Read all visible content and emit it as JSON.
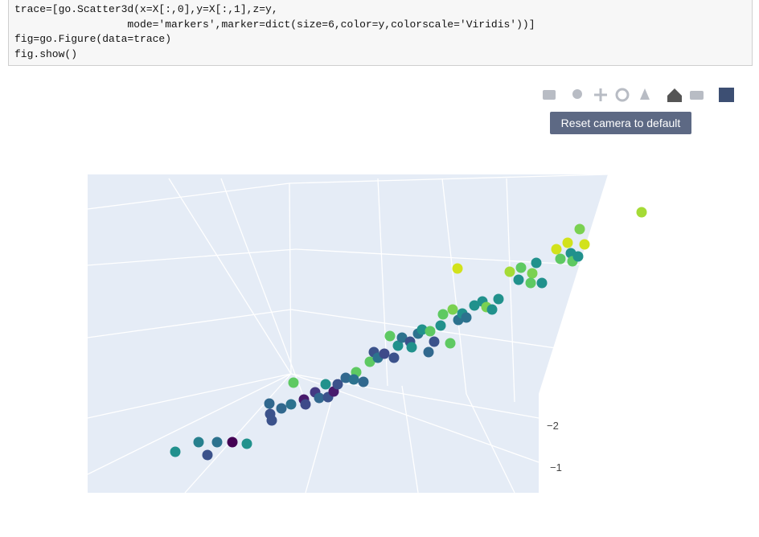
{
  "code": {
    "lines": [
      "trace=[go.Scatter3d(x=X[:,0],y=X[:,1],z=y,",
      "                  mode='markers',marker=dict(size=6,color=y,colorscale='Viridis'))]",
      "fig=go.Figure(data=trace)",
      "fig.show()"
    ]
  },
  "toolbar": {
    "tooltip": "Reset camera to default"
  },
  "scene": {
    "tick_labels": [
      "−2",
      "−1"
    ]
  }
}
